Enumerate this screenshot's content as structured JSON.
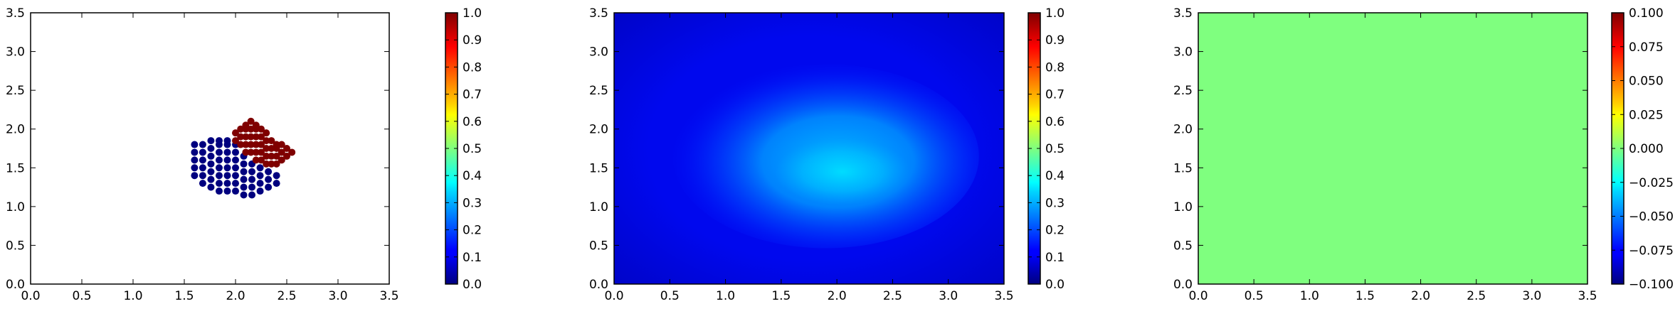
{
  "chart_data": [
    {
      "type": "scatter",
      "title": "",
      "xlabel": "",
      "ylabel": "",
      "xlim": [
        0.0,
        3.5
      ],
      "ylim": [
        0.0,
        3.5
      ],
      "grid": false,
      "xticks": [
        "0.0",
        "0.5",
        "1.0",
        "1.5",
        "2.0",
        "2.5",
        "3.0",
        "3.5"
      ],
      "yticks": [
        "0.0",
        "0.5",
        "1.0",
        "1.5",
        "2.0",
        "2.5",
        "3.0",
        "3.5"
      ],
      "colormap": "jet",
      "colorbar": {
        "range": [
          0.0,
          1.0
        ],
        "ticks": [
          "0.0",
          "0.1",
          "0.2",
          "0.3",
          "0.4",
          "0.5",
          "0.6",
          "0.7",
          "0.8",
          "0.9",
          "1.0"
        ]
      },
      "series": [
        {
          "value": 0.0,
          "color": "#00007f",
          "points": [
            [
              1.6,
              1.4
            ],
            [
              1.6,
              1.5
            ],
            [
              1.6,
              1.6
            ],
            [
              1.6,
              1.7
            ],
            [
              1.6,
              1.8
            ],
            [
              1.68,
              1.3
            ],
            [
              1.68,
              1.4
            ],
            [
              1.68,
              1.5
            ],
            [
              1.68,
              1.6
            ],
            [
              1.68,
              1.7
            ],
            [
              1.68,
              1.8
            ],
            [
              1.76,
              1.25
            ],
            [
              1.76,
              1.35
            ],
            [
              1.76,
              1.45
            ],
            [
              1.76,
              1.55
            ],
            [
              1.76,
              1.65
            ],
            [
              1.76,
              1.75
            ],
            [
              1.76,
              1.85
            ],
            [
              1.84,
              1.2
            ],
            [
              1.84,
              1.3
            ],
            [
              1.84,
              1.4
            ],
            [
              1.84,
              1.5
            ],
            [
              1.84,
              1.6
            ],
            [
              1.84,
              1.7
            ],
            [
              1.84,
              1.8
            ],
            [
              1.84,
              1.85
            ],
            [
              1.92,
              1.2
            ],
            [
              1.92,
              1.3
            ],
            [
              1.92,
              1.4
            ],
            [
              1.92,
              1.5
            ],
            [
              1.92,
              1.6
            ],
            [
              1.92,
              1.7
            ],
            [
              1.92,
              1.8
            ],
            [
              1.92,
              1.85
            ],
            [
              2.0,
              1.2
            ],
            [
              2.0,
              1.3
            ],
            [
              2.0,
              1.4
            ],
            [
              2.0,
              1.5
            ],
            [
              2.0,
              1.6
            ],
            [
              2.0,
              1.7
            ],
            [
              2.0,
              1.8
            ],
            [
              2.08,
              1.15
            ],
            [
              2.08,
              1.25
            ],
            [
              2.08,
              1.35
            ],
            [
              2.08,
              1.45
            ],
            [
              2.08,
              1.55
            ],
            [
              2.08,
              1.65
            ],
            [
              2.16,
              1.15
            ],
            [
              2.16,
              1.25
            ],
            [
              2.16,
              1.35
            ],
            [
              2.16,
              1.45
            ],
            [
              2.16,
              1.55
            ],
            [
              2.24,
              1.2
            ],
            [
              2.24,
              1.3
            ],
            [
              2.24,
              1.4
            ],
            [
              2.24,
              1.5
            ],
            [
              2.32,
              1.25
            ],
            [
              2.32,
              1.35
            ],
            [
              2.32,
              1.45
            ],
            [
              2.4,
              1.3
            ],
            [
              2.4,
              1.4
            ]
          ]
        },
        {
          "value": 1.0,
          "color": "#7f0000",
          "points": [
            [
              2.0,
              1.85
            ],
            [
              2.0,
              1.95
            ],
            [
              2.05,
              1.8
            ],
            [
              2.05,
              1.9
            ],
            [
              2.05,
              2.0
            ],
            [
              2.1,
              1.7
            ],
            [
              2.1,
              1.8
            ],
            [
              2.1,
              1.9
            ],
            [
              2.1,
              2.0
            ],
            [
              2.1,
              2.05
            ],
            [
              2.15,
              1.7
            ],
            [
              2.15,
              1.8
            ],
            [
              2.15,
              1.9
            ],
            [
              2.15,
              2.0
            ],
            [
              2.15,
              2.1
            ],
            [
              2.2,
              1.6
            ],
            [
              2.2,
              1.7
            ],
            [
              2.2,
              1.8
            ],
            [
              2.2,
              1.9
            ],
            [
              2.2,
              2.0
            ],
            [
              2.2,
              2.05
            ],
            [
              2.25,
              1.6
            ],
            [
              2.25,
              1.7
            ],
            [
              2.25,
              1.8
            ],
            [
              2.25,
              1.9
            ],
            [
              2.25,
              2.0
            ],
            [
              2.3,
              1.55
            ],
            [
              2.3,
              1.65
            ],
            [
              2.3,
              1.75
            ],
            [
              2.3,
              1.85
            ],
            [
              2.3,
              1.95
            ],
            [
              2.35,
              1.55
            ],
            [
              2.35,
              1.65
            ],
            [
              2.35,
              1.75
            ],
            [
              2.35,
              1.85
            ],
            [
              2.4,
              1.55
            ],
            [
              2.4,
              1.65
            ],
            [
              2.4,
              1.75
            ],
            [
              2.4,
              1.8
            ],
            [
              2.45,
              1.6
            ],
            [
              2.45,
              1.7
            ],
            [
              2.45,
              1.8
            ],
            [
              2.5,
              1.65
            ],
            [
              2.5,
              1.75
            ],
            [
              2.55,
              1.7
            ]
          ]
        }
      ]
    },
    {
      "type": "heatmap",
      "title": "",
      "xlabel": "",
      "ylabel": "",
      "xlim": [
        0.0,
        3.5
      ],
      "ylim": [
        0.0,
        3.5
      ],
      "grid": false,
      "xticks": [
        "0.0",
        "0.5",
        "1.0",
        "1.5",
        "2.0",
        "2.5",
        "3.0",
        "3.5"
      ],
      "yticks": [
        "0.0",
        "0.5",
        "1.0",
        "1.5",
        "2.0",
        "2.5",
        "3.0",
        "3.5"
      ],
      "colormap": "jet",
      "colorbar": {
        "range": [
          0.0,
          1.0
        ],
        "ticks": [
          "0.0",
          "0.1",
          "0.2",
          "0.3",
          "0.4",
          "0.5",
          "0.6",
          "0.7",
          "0.8",
          "0.9",
          "1.0"
        ]
      },
      "field": {
        "background_value": 0.1,
        "peak_value": 0.36,
        "peak_center": [
          2.05,
          1.45
        ],
        "blob_center": [
          1.9,
          1.65
        ],
        "blob_radius": [
          1.1,
          0.95
        ]
      }
    },
    {
      "type": "heatmap",
      "title": "",
      "xlabel": "",
      "ylabel": "",
      "xlim": [
        0.0,
        3.5
      ],
      "ylim": [
        0.0,
        3.5
      ],
      "grid": false,
      "xticks": [
        "0.0",
        "0.5",
        "1.0",
        "1.5",
        "2.0",
        "2.5",
        "3.0",
        "3.5"
      ],
      "yticks": [
        "0.0",
        "0.5",
        "1.0",
        "1.5",
        "2.0",
        "2.5",
        "3.0",
        "3.5"
      ],
      "colormap": "jet",
      "colorbar": {
        "range": [
          -0.1,
          0.1
        ],
        "ticks": [
          "−0.100",
          "−0.075",
          "−0.050",
          "−0.025",
          "0.000",
          "0.025",
          "0.050",
          "0.075",
          "0.100"
        ]
      },
      "field": {
        "uniform_value": 0.0,
        "fill_color": "#7fff7f"
      }
    }
  ]
}
